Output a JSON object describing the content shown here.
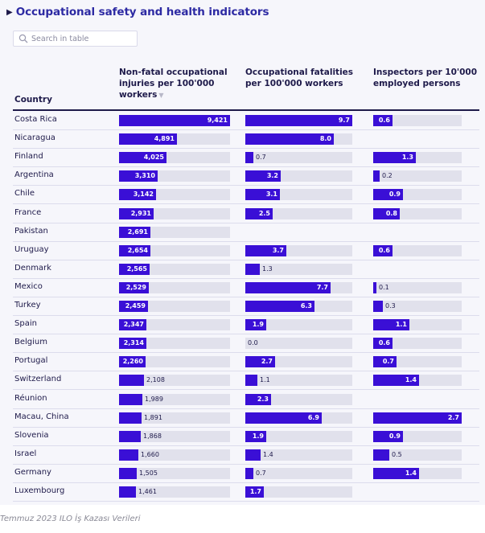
{
  "title": "Occupational safety and health indicators",
  "search": {
    "placeholder": "Search in table"
  },
  "columns": {
    "country": "Country",
    "injuries": "Non-fatal occupational injuries per 100'000 workers",
    "fatalities": "Occupational fatalities per 100'000 workers",
    "inspectors": "Inspectors per 10'000 employed persons"
  },
  "icons": {
    "title_arrow": "triangle-right-icon",
    "search": "search-icon",
    "sort": "sort-down-icon"
  },
  "colors": {
    "bar": "#3a0fd6",
    "track": "#e1e1ec",
    "title": "#2d2aa3"
  },
  "scales": {
    "injuries_max": 9421,
    "fatalities_max": 9.7,
    "inspectors_max": 2.7
  },
  "rows": [
    {
      "country": "Costa Rica",
      "injuries": 9421,
      "injuries_label": "9,421",
      "fatalities": 9.7,
      "fatalities_label": "9.7",
      "inspectors": 0.6,
      "inspectors_label": "0.6"
    },
    {
      "country": "Nicaragua",
      "injuries": 4891,
      "injuries_label": "4,891",
      "fatalities": 8.0,
      "fatalities_label": "8.0",
      "inspectors": null,
      "inspectors_label": ""
    },
    {
      "country": "Finland",
      "injuries": 4025,
      "injuries_label": "4,025",
      "fatalities": 0.7,
      "fatalities_label": "0.7",
      "inspectors": 1.3,
      "inspectors_label": "1.3"
    },
    {
      "country": "Argentina",
      "injuries": 3310,
      "injuries_label": "3,310",
      "fatalities": 3.2,
      "fatalities_label": "3.2",
      "inspectors": 0.2,
      "inspectors_label": "0.2"
    },
    {
      "country": "Chile",
      "injuries": 3142,
      "injuries_label": "3,142",
      "fatalities": 3.1,
      "fatalities_label": "3.1",
      "inspectors": 0.9,
      "inspectors_label": "0.9"
    },
    {
      "country": "France",
      "injuries": 2931,
      "injuries_label": "2,931",
      "fatalities": 2.5,
      "fatalities_label": "2.5",
      "inspectors": 0.8,
      "inspectors_label": "0.8"
    },
    {
      "country": "Pakistan",
      "injuries": 2691,
      "injuries_label": "2,691",
      "fatalities": null,
      "fatalities_label": "",
      "inspectors": null,
      "inspectors_label": ""
    },
    {
      "country": "Uruguay",
      "injuries": 2654,
      "injuries_label": "2,654",
      "fatalities": 3.7,
      "fatalities_label": "3.7",
      "inspectors": 0.6,
      "inspectors_label": "0.6"
    },
    {
      "country": "Denmark",
      "injuries": 2565,
      "injuries_label": "2,565",
      "fatalities": 1.3,
      "fatalities_label": "1.3",
      "inspectors": null,
      "inspectors_label": ""
    },
    {
      "country": "Mexico",
      "injuries": 2529,
      "injuries_label": "2,529",
      "fatalities": 7.7,
      "fatalities_label": "7.7",
      "inspectors": 0.1,
      "inspectors_label": "0.1"
    },
    {
      "country": "Turkey",
      "injuries": 2459,
      "injuries_label": "2,459",
      "fatalities": 6.3,
      "fatalities_label": "6.3",
      "inspectors": 0.3,
      "inspectors_label": "0.3"
    },
    {
      "country": "Spain",
      "injuries": 2347,
      "injuries_label": "2,347",
      "fatalities": 1.9,
      "fatalities_label": "1.9",
      "inspectors": 1.1,
      "inspectors_label": "1.1"
    },
    {
      "country": "Belgium",
      "injuries": 2314,
      "injuries_label": "2,314",
      "fatalities": 0.0,
      "fatalities_label": "0.0",
      "inspectors": 0.6,
      "inspectors_label": "0.6"
    },
    {
      "country": "Portugal",
      "injuries": 2260,
      "injuries_label": "2,260",
      "fatalities": 2.7,
      "fatalities_label": "2.7",
      "inspectors": 0.7,
      "inspectors_label": "0.7"
    },
    {
      "country": "Switzerland",
      "injuries": 2108,
      "injuries_label": "2,108",
      "fatalities": 1.1,
      "fatalities_label": "1.1",
      "inspectors": 1.4,
      "inspectors_label": "1.4"
    },
    {
      "country": "Réunion",
      "injuries": 1989,
      "injuries_label": "1,989",
      "fatalities": 2.3,
      "fatalities_label": "2.3",
      "inspectors": null,
      "inspectors_label": ""
    },
    {
      "country": "Macau, China",
      "injuries": 1891,
      "injuries_label": "1,891",
      "fatalities": 6.9,
      "fatalities_label": "6.9",
      "inspectors": 2.7,
      "inspectors_label": "2.7"
    },
    {
      "country": "Slovenia",
      "injuries": 1868,
      "injuries_label": "1,868",
      "fatalities": 1.9,
      "fatalities_label": "1.9",
      "inspectors": 0.9,
      "inspectors_label": "0.9"
    },
    {
      "country": "Israel",
      "injuries": 1660,
      "injuries_label": "1,660",
      "fatalities": 1.4,
      "fatalities_label": "1.4",
      "inspectors": 0.5,
      "inspectors_label": "0.5"
    },
    {
      "country": "Germany",
      "injuries": 1505,
      "injuries_label": "1,505",
      "fatalities": 0.7,
      "fatalities_label": "0.7",
      "inspectors": 1.4,
      "inspectors_label": "1.4"
    },
    {
      "country": "Luxembourg",
      "injuries": 1461,
      "injuries_label": "1,461",
      "fatalities": 1.7,
      "fatalities_label": "1.7",
      "inspectors": null,
      "inspectors_label": ""
    }
  ],
  "caption": "Temmuz 2023 ILO İş Kazası Verileri"
}
